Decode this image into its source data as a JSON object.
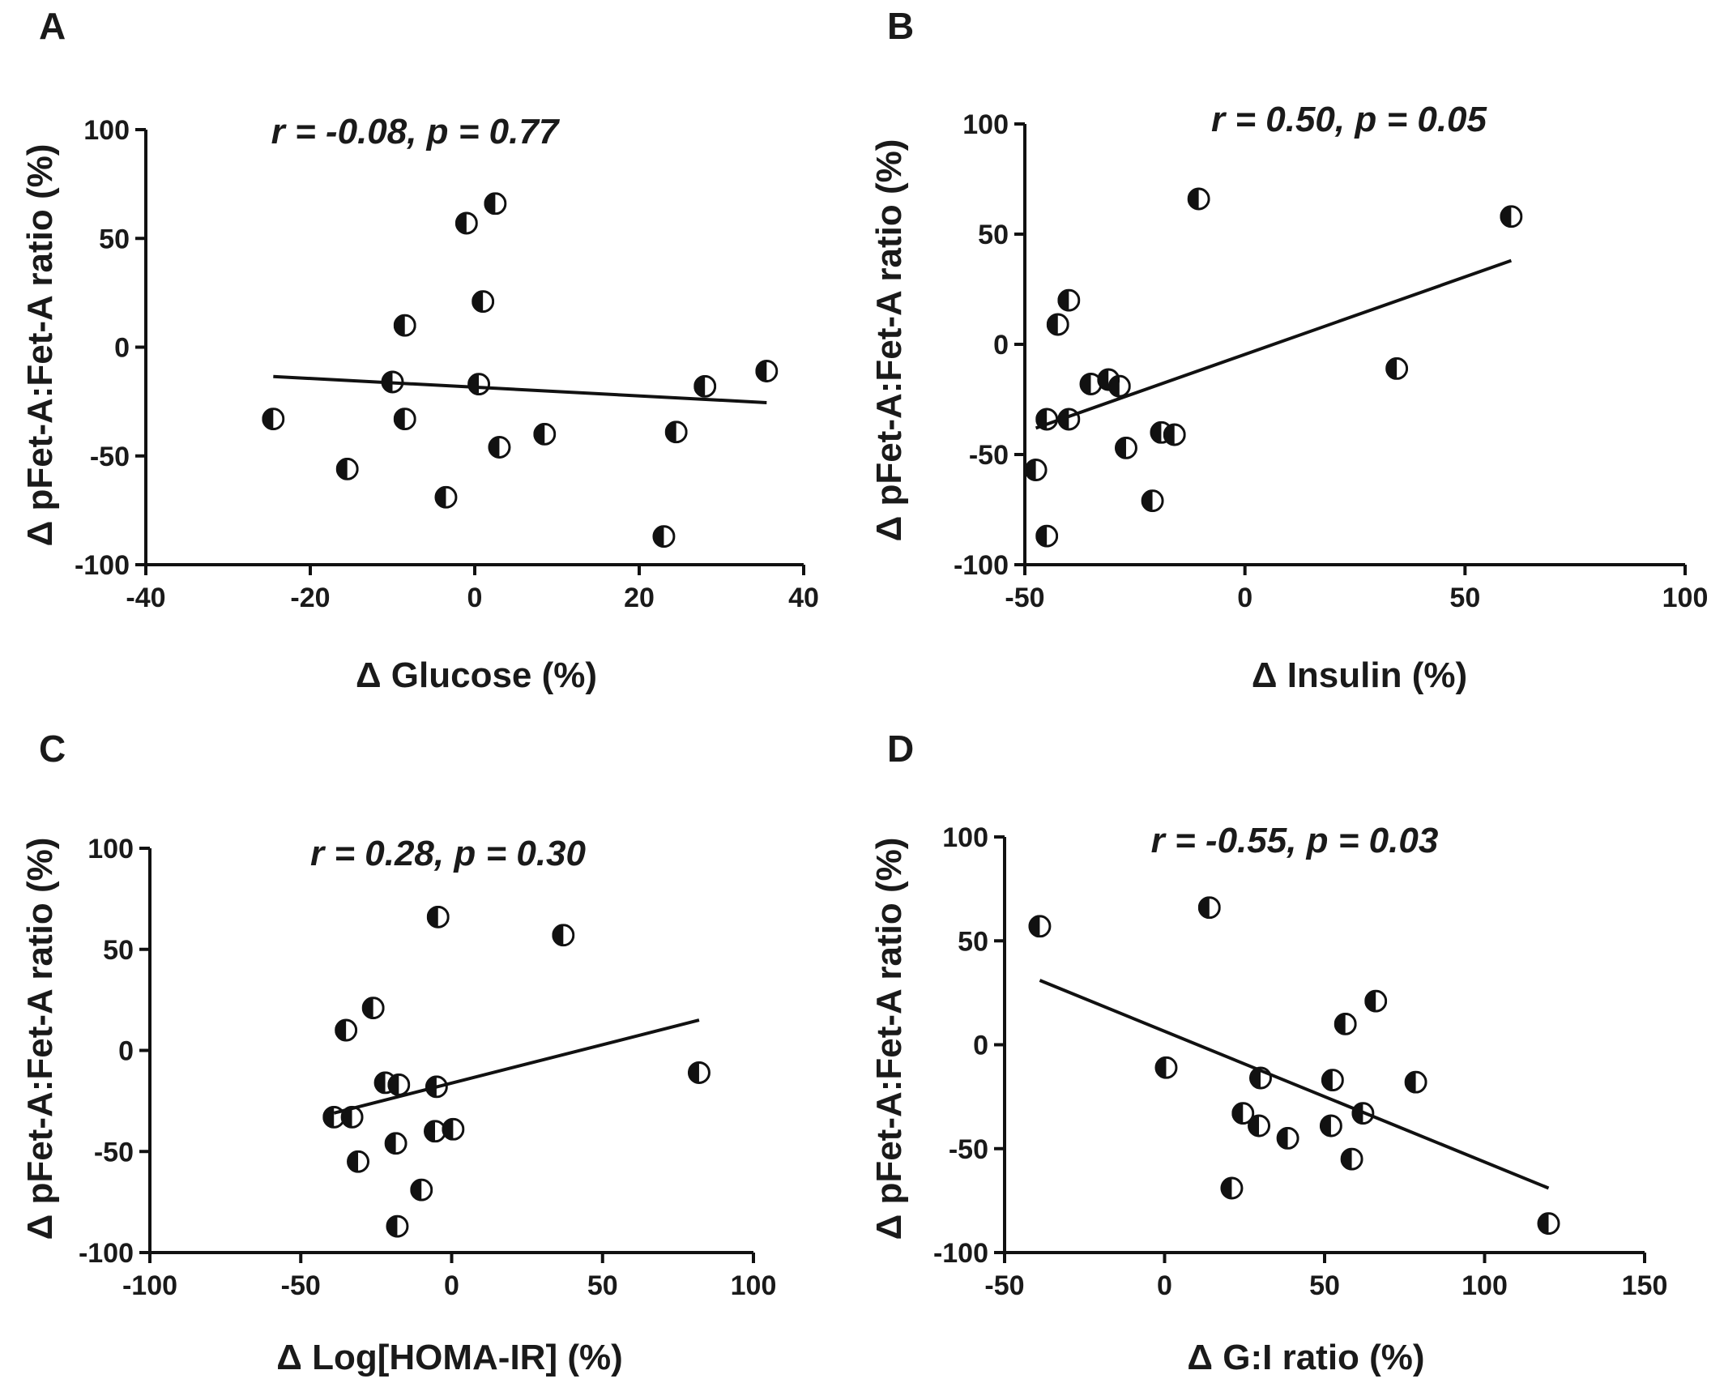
{
  "chart_data": [
    {
      "panel": "A",
      "type": "scatter",
      "annotation": "r = -0.08, p = 0.77",
      "xlabel": "Δ Glucose (%)",
      "ylabel": "Δ pFet-A:Fet-A ratio (%)",
      "xlim": [
        -40,
        40
      ],
      "ylim": [
        -100,
        100
      ],
      "xticks": [
        -40,
        -20,
        0,
        20,
        40
      ],
      "yticks": [
        -100,
        -50,
        0,
        50,
        100
      ],
      "x": [
        -24.5,
        -15.5,
        -10,
        -8.5,
        -8.5,
        -3.5,
        -1,
        0.5,
        1,
        2.5,
        3,
        8.5,
        23,
        24.5,
        28,
        35.5
      ],
      "y": [
        -33,
        -56,
        -16,
        10,
        -33,
        -69,
        57,
        -17,
        21,
        66,
        -46,
        -40,
        -87,
        -39,
        -18,
        -11
      ],
      "fit": {
        "x": [
          -24.5,
          35.5
        ],
        "y": [
          -13.5,
          -25.5
        ]
      }
    },
    {
      "panel": "B",
      "type": "scatter",
      "annotation": "r = 0.50, p = 0.05",
      "xlabel": "Δ Insulin (%)",
      "ylabel": "Δ pFet-A:Fet-A ratio (%)",
      "xlim": [
        -50,
        100
      ],
      "ylim": [
        -100,
        100
      ],
      "xticks": [
        -50,
        0,
        50,
        100
      ],
      "yticks": [
        -100,
        -50,
        0,
        50,
        100
      ],
      "x": [
        -47.5,
        -45,
        -45,
        -42.5,
        -40,
        -40,
        -35,
        -31,
        -28.5,
        -27,
        -21,
        -19,
        -16,
        -10.5,
        34.5,
        60.5
      ],
      "y": [
        -57,
        -87,
        -34,
        9,
        20,
        -34,
        -18,
        -16,
        -19,
        -47,
        -71,
        -40,
        -41,
        66,
        -11,
        58
      ],
      "fit": {
        "x": [
          -47.5,
          60.5
        ],
        "y": [
          -38,
          38
        ]
      }
    },
    {
      "panel": "C",
      "type": "scatter",
      "annotation": "r = 0.28, p = 0.30",
      "xlabel": "Δ Log[HOMA-IR] (%)",
      "ylabel": "Δ pFet-A:Fet-A ratio (%)",
      "xlim": [
        -100,
        100
      ],
      "ylim": [
        -100,
        100
      ],
      "xticks": [
        -100,
        -50,
        0,
        50,
        100
      ],
      "yticks": [
        -100,
        -50,
        0,
        50,
        100
      ],
      "x": [
        -39,
        -35,
        -33,
        -31,
        -26,
        -22,
        -18.5,
        -18,
        -17.5,
        -10,
        -5.5,
        -5,
        -4.5,
        0.5,
        37,
        82
      ],
      "y": [
        -33,
        10,
        -33,
        -55,
        21,
        -16,
        -46,
        -87,
        -17,
        -69,
        -40,
        -18,
        66,
        -39,
        57,
        -11
      ],
      "fit": {
        "x": [
          -39,
          82
        ],
        "y": [
          -31,
          15
        ]
      }
    },
    {
      "panel": "D",
      "type": "scatter",
      "annotation": "r = -0.55, p = 0.03",
      "xlabel": "Δ G:I ratio (%)",
      "ylabel": "Δ pFet-A:Fet-A ratio (%)",
      "xlim": [
        -50,
        150
      ],
      "ylim": [
        -100,
        100
      ],
      "xticks": [
        -50,
        0,
        50,
        100,
        150
      ],
      "yticks": [
        -100,
        -50,
        0,
        50,
        100
      ],
      "x": [
        -39,
        0.5,
        14,
        21,
        24.5,
        29.5,
        30,
        38.5,
        52,
        52.5,
        56.5,
        58.5,
        62,
        66,
        78.5,
        120
      ],
      "y": [
        57,
        -11,
        66,
        -69,
        -33,
        -39,
        -16,
        -45,
        -39,
        -17,
        10,
        -55,
        -33,
        21,
        -18,
        -86
      ],
      "fit": {
        "x": [
          -39,
          120
        ],
        "y": [
          31,
          -69
        ]
      }
    }
  ]
}
